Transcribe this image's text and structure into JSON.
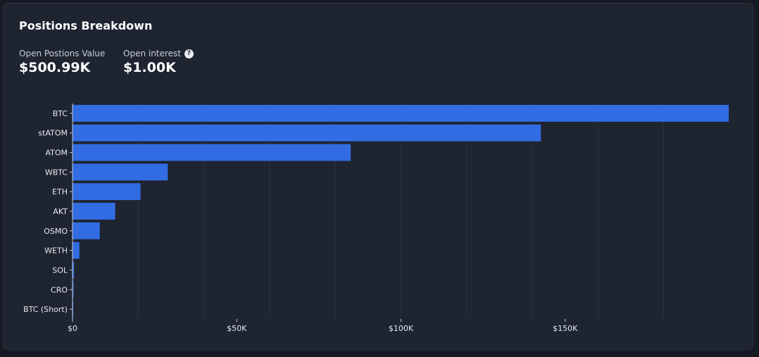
{
  "card": {
    "title": "Positions Breakdown",
    "metrics": [
      {
        "label": "Open Postions Value",
        "value": "$500.99K"
      },
      {
        "label": "Open interest",
        "value": "$1.00K",
        "help": "?"
      }
    ]
  },
  "colors": {
    "bar": "#316ce3",
    "grid": "#2b3240",
    "axis": "#c9ced8"
  },
  "chart_data": {
    "type": "bar",
    "orientation": "horizontal",
    "title": "",
    "xlabel": "",
    "ylabel": "",
    "categories": [
      "BTC",
      "stATOM",
      "ATOM",
      "WBTC",
      "ETH",
      "AKT",
      "OSMO",
      "WETH",
      "SOL",
      "CRO",
      "BTC (Short)"
    ],
    "values": [
      199800,
      142600,
      84700,
      29000,
      20700,
      13000,
      8300,
      2100,
      450,
      300,
      150
    ],
    "xlim": [
      0,
      199800
    ],
    "x_ticks": [
      0,
      50000,
      100000,
      150000
    ],
    "x_tick_labels": [
      "$0",
      "$50K",
      "$100K",
      "$150K"
    ],
    "grid_step": 20000,
    "grid": true,
    "legend": "none"
  }
}
